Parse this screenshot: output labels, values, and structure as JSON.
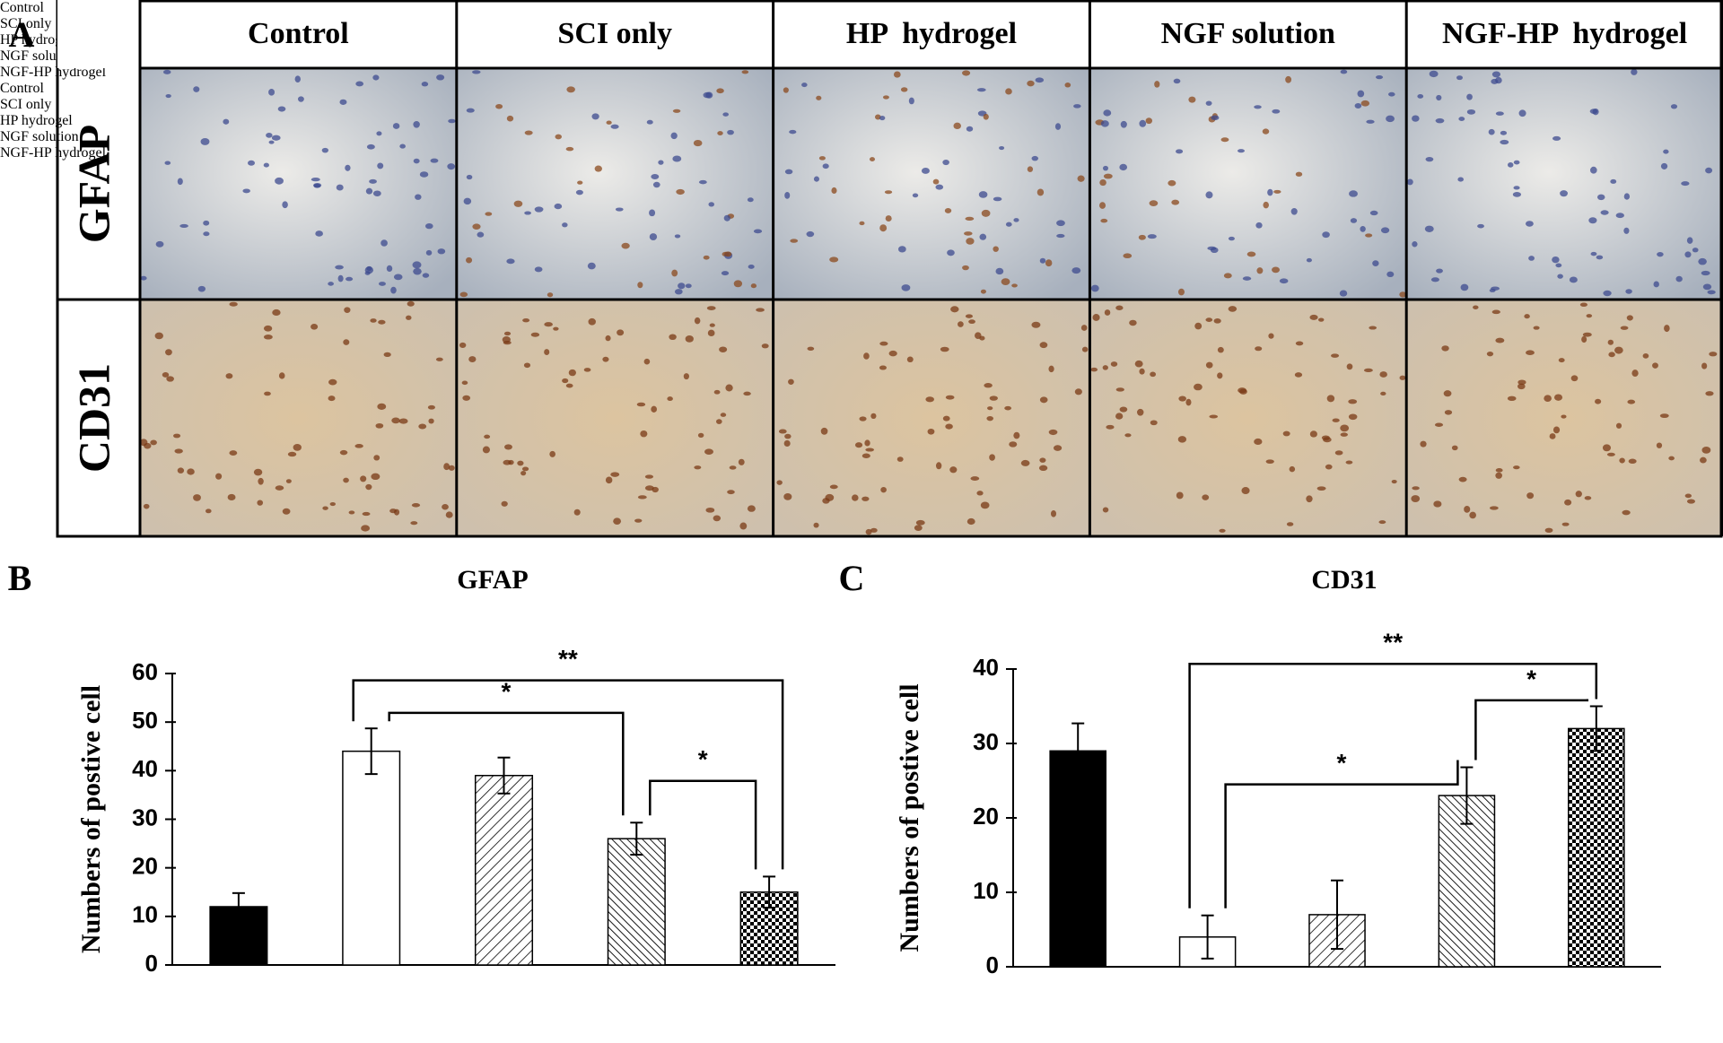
{
  "panel_a": {
    "label": "A",
    "columns": [
      "Control",
      "SCI only",
      "HP  hydrogel",
      "NGF solution",
      "NGF-HP  hydrogel"
    ],
    "rows": [
      "GFAP",
      "CD31"
    ]
  },
  "chart_data": [
    {
      "type": "bar",
      "panel": "B",
      "title": "GFAP",
      "ylabel": "Numbers of postive cell",
      "categories": [
        "Control",
        "SCI only",
        "HP\nhydrogel",
        "NGF\nsolution",
        "NGF-HP\nhydrogel"
      ],
      "values": [
        12,
        44,
        39,
        26,
        15
      ],
      "errors": [
        2.8,
        4.7,
        3.7,
        3.3,
        3.2
      ],
      "ylim": [
        0,
        60
      ],
      "yticks": [
        0,
        10,
        20,
        30,
        40,
        50,
        60
      ],
      "annotations": [
        "**",
        "*",
        "*"
      ],
      "color": "#000000"
    },
    {
      "type": "bar",
      "panel": "C",
      "title": "CD31",
      "ylabel": "Numbers of postive cell",
      "categories": [
        "Control",
        "SCI only",
        "HP\nhydrogel",
        "NGF\nsolution",
        "NGF-HP\nhydrogel"
      ],
      "values": [
        29,
        4,
        7,
        23,
        32
      ],
      "errors": [
        3.7,
        2.9,
        4.6,
        3.8,
        3.0
      ],
      "ylim": [
        0,
        40
      ],
      "yticks": [
        0,
        10,
        20,
        30,
        40
      ],
      "annotations": [
        "**",
        "*",
        "*"
      ],
      "color": "#000000"
    }
  ]
}
